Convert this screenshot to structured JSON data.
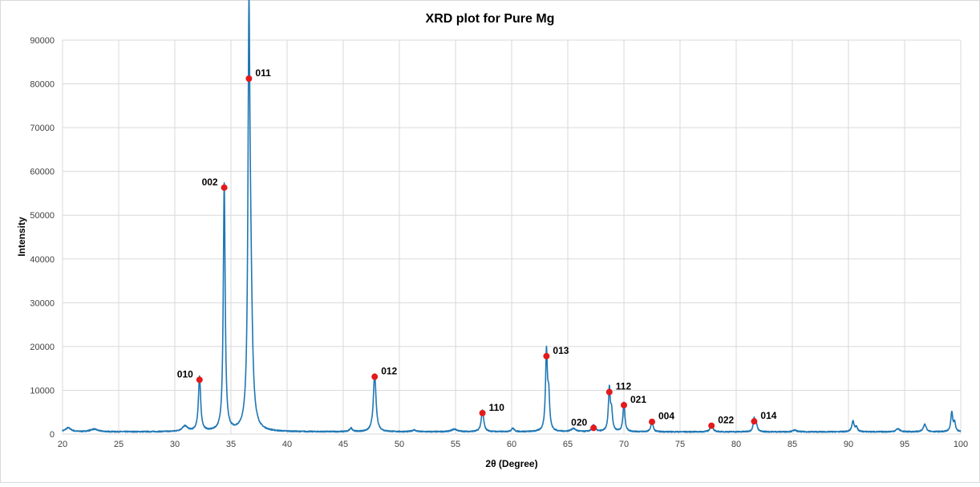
{
  "chart_data": {
    "type": "line",
    "title": "XRD plot for Pure Mg",
    "xlabel": "2θ (Degree)",
    "ylabel": "Intensity",
    "xlim": [
      20,
      100
    ],
    "ylim": [
      0,
      90000
    ],
    "xticks": [
      "20",
      "25",
      "30",
      "35",
      "40",
      "45",
      "50",
      "55",
      "60",
      "65",
      "70",
      "75",
      "80",
      "85",
      "90",
      "95",
      "100"
    ],
    "yticks": [
      "0",
      "10000",
      "20000",
      "30000",
      "40000",
      "50000",
      "60000",
      "70000",
      "80000",
      "90000"
    ],
    "grid": true,
    "legend": "none",
    "colors": {
      "line": "#1f77b4",
      "peak_marker": "#e31a1c"
    },
    "baseline": 500,
    "series": [
      {
        "peaks": [
          [
            20.5,
            900,
            0.3
          ],
          [
            22.8,
            600,
            0.4
          ],
          [
            30.9,
            1200,
            0.3
          ],
          [
            32.2,
            12400,
            0.12
          ],
          [
            34.4,
            56500,
            0.1
          ],
          [
            36.6,
            81500,
            0.1
          ],
          [
            36.75,
            30000,
            0.18
          ],
          [
            45.7,
            800,
            0.15
          ],
          [
            47.8,
            13200,
            0.14
          ],
          [
            51.3,
            400,
            0.2
          ],
          [
            54.9,
            600,
            0.3
          ],
          [
            57.4,
            4900,
            0.13
          ],
          [
            60.1,
            800,
            0.15
          ],
          [
            63.1,
            18000,
            0.1
          ],
          [
            63.3,
            7500,
            0.1
          ],
          [
            65.5,
            700,
            0.25
          ],
          [
            67.3,
            1500,
            0.15
          ],
          [
            68.7,
            9700,
            0.1
          ],
          [
            68.9,
            4200,
            0.1
          ],
          [
            70.0,
            6700,
            0.1
          ],
          [
            72.5,
            2800,
            0.1
          ],
          [
            77.8,
            1900,
            0.12
          ],
          [
            81.6,
            3000,
            0.1
          ],
          [
            81.8,
            1500,
            0.1
          ],
          [
            85.2,
            400,
            0.2
          ],
          [
            90.4,
            2400,
            0.12
          ],
          [
            90.7,
            1000,
            0.12
          ],
          [
            94.4,
            700,
            0.2
          ],
          [
            96.8,
            1700,
            0.15
          ],
          [
            99.2,
            4400,
            0.1
          ],
          [
            99.45,
            2000,
            0.1
          ]
        ]
      }
    ],
    "annotations": [
      {
        "label": "010",
        "x": 32.2,
        "y": 12400,
        "side": "left"
      },
      {
        "label": "002",
        "x": 34.4,
        "y": 56300,
        "side": "left"
      },
      {
        "label": "011",
        "x": 36.6,
        "y": 81200,
        "side": "right"
      },
      {
        "label": "012",
        "x": 47.8,
        "y": 13100,
        "side": "right"
      },
      {
        "label": "110",
        "x": 57.4,
        "y": 4800,
        "side": "right"
      },
      {
        "label": "013",
        "x": 63.1,
        "y": 17800,
        "side": "right"
      },
      {
        "label": "020",
        "x": 67.3,
        "y": 1400,
        "side": "left"
      },
      {
        "label": "112",
        "x": 68.7,
        "y": 9600,
        "side": "right"
      },
      {
        "label": "021",
        "x": 70.0,
        "y": 6600,
        "side": "right"
      },
      {
        "label": "004",
        "x": 72.5,
        "y": 2800,
        "side": "right"
      },
      {
        "label": "022",
        "x": 77.8,
        "y": 1900,
        "side": "right"
      },
      {
        "label": "014",
        "x": 81.6,
        "y": 2900,
        "side": "right"
      }
    ]
  }
}
